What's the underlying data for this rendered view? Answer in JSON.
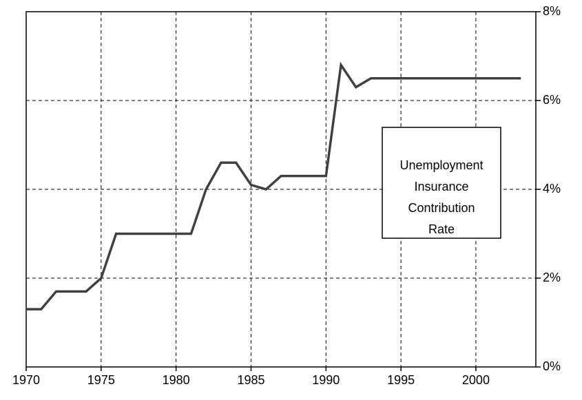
{
  "chart_data": {
    "type": "line",
    "x": [
      1970,
      1971,
      1972,
      1973,
      1974,
      1975,
      1976,
      1977,
      1978,
      1979,
      1980,
      1981,
      1982,
      1983,
      1984,
      1985,
      1986,
      1987,
      1988,
      1989,
      1990,
      1991,
      1992,
      1993,
      1994,
      1995,
      1996,
      1997,
      1998,
      1999,
      2000,
      2001,
      2002,
      2003
    ],
    "values": [
      1.3,
      1.3,
      1.7,
      1.7,
      1.7,
      2.0,
      3.0,
      3.0,
      3.0,
      3.0,
      3.0,
      3.0,
      4.0,
      4.6,
      4.6,
      4.1,
      4.0,
      4.3,
      4.3,
      4.3,
      4.3,
      6.8,
      6.3,
      6.5,
      6.5,
      6.5,
      6.5,
      6.5,
      6.5,
      6.5,
      6.5,
      6.5,
      6.5,
      6.5
    ],
    "color": "#404040",
    "xlim": [
      1970,
      2004
    ],
    "xticks": [
      1970,
      1975,
      1980,
      1985,
      1990,
      1995,
      2000
    ],
    "ylim": [
      0,
      8
    ],
    "yticks": [
      {
        "value": 0,
        "label": "0%"
      },
      {
        "value": 2,
        "label": "2%"
      },
      {
        "value": 4,
        "label": "4%"
      },
      {
        "value": 6,
        "label": "6%"
      },
      {
        "value": 8,
        "label": "8%"
      }
    ],
    "grid": true,
    "annotation": [
      "Unemployment",
      "Insurance",
      "Contribution",
      "Rate"
    ]
  }
}
